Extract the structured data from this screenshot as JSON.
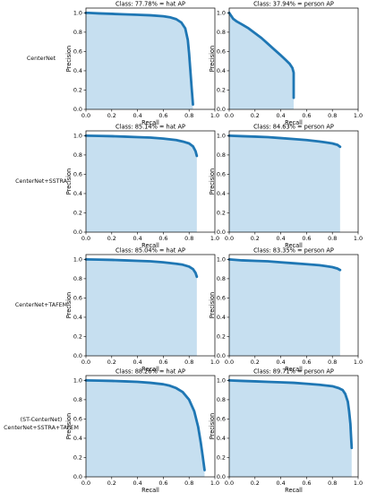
{
  "rows": [
    {
      "label": [
        "CenterNet"
      ]
    },
    {
      "label": [
        "CenterNet+SSTRA"
      ]
    },
    {
      "label": [
        "CenterNet+TAFEM"
      ]
    },
    {
      "label": [
        "(ST-CenterNet)",
        "CenterNet+SSTRA+TAFEM"
      ]
    }
  ],
  "colors": {
    "curve": "#1f77b4",
    "fill": "#c6dff0",
    "axis": "#000000"
  },
  "chart_data": [
    {
      "type": "area",
      "title": "Class: 77.78% = hat AP",
      "xlabel": "Recall",
      "ylabel": "Precision",
      "xlim": [
        0,
        1.0
      ],
      "ylim": [
        0,
        1.05
      ],
      "grid": false,
      "xticks": [
        "0.0",
        "0.2",
        "0.4",
        "0.6",
        "0.8",
        "1.0"
      ],
      "yticks": [
        "0.0",
        "0.2",
        "0.4",
        "0.6",
        "0.8",
        "1.0"
      ],
      "series": [
        {
          "x": [
            0,
            0.02,
            0.1,
            0.2,
            0.3,
            0.4,
            0.5,
            0.6,
            0.65,
            0.7,
            0.74,
            0.77,
            0.79,
            0.8,
            0.81,
            0.82,
            0.83
          ],
          "y": [
            1.0,
            1.0,
            0.995,
            0.99,
            0.985,
            0.98,
            0.975,
            0.965,
            0.955,
            0.935,
            0.9,
            0.84,
            0.72,
            0.58,
            0.4,
            0.22,
            0.05
          ]
        }
      ]
    },
    {
      "type": "area",
      "title": "Class: 37.94% = person AP",
      "xlabel": "Recall",
      "ylabel": "Precision",
      "xlim": [
        0,
        1.0
      ],
      "ylim": [
        0,
        1.05
      ],
      "grid": false,
      "xticks": [
        "0.0",
        "0.2",
        "0.4",
        "0.6",
        "0.8",
        "1.0"
      ],
      "yticks": [
        "0.0",
        "0.2",
        "0.4",
        "0.6",
        "0.8",
        "1.0"
      ],
      "series": [
        {
          "x": [
            0,
            0.01,
            0.03,
            0.06,
            0.1,
            0.15,
            0.2,
            0.25,
            0.3,
            0.35,
            0.4,
            0.44,
            0.47,
            0.49,
            0.5,
            0.5,
            0.5
          ],
          "y": [
            1.0,
            0.98,
            0.94,
            0.91,
            0.88,
            0.84,
            0.79,
            0.74,
            0.68,
            0.62,
            0.56,
            0.51,
            0.47,
            0.43,
            0.38,
            0.25,
            0.12
          ]
        }
      ]
    },
    {
      "type": "area",
      "title": "Class: 85.14% = hat AP",
      "xlabel": "Recall",
      "ylabel": "Precision",
      "xlim": [
        0,
        1.0
      ],
      "ylim": [
        0,
        1.05
      ],
      "grid": false,
      "xticks": [
        "0.0",
        "0.2",
        "0.4",
        "0.6",
        "0.8",
        "1.0"
      ],
      "yticks": [
        "0.0",
        "0.2",
        "0.4",
        "0.6",
        "0.8",
        "1.0"
      ],
      "series": [
        {
          "x": [
            0,
            0.1,
            0.2,
            0.3,
            0.4,
            0.5,
            0.6,
            0.7,
            0.75,
            0.8,
            0.83,
            0.85,
            0.86
          ],
          "y": [
            1.0,
            0.998,
            0.995,
            0.99,
            0.985,
            0.98,
            0.97,
            0.955,
            0.94,
            0.92,
            0.89,
            0.84,
            0.79
          ]
        }
      ]
    },
    {
      "type": "area",
      "title": "Class: 84.63% = person AP",
      "xlabel": "Recall",
      "ylabel": "Precision",
      "xlim": [
        0,
        1.0
      ],
      "ylim": [
        0,
        1.05
      ],
      "grid": false,
      "xticks": [
        "0.0",
        "0.2",
        "0.4",
        "0.6",
        "0.8",
        "1.0"
      ],
      "yticks": [
        "0.0",
        "0.2",
        "0.4",
        "0.6",
        "0.8",
        "1.0"
      ],
      "series": [
        {
          "x": [
            0,
            0.1,
            0.2,
            0.3,
            0.4,
            0.5,
            0.6,
            0.7,
            0.75,
            0.8,
            0.84,
            0.86
          ],
          "y": [
            1.0,
            0.995,
            0.99,
            0.985,
            0.975,
            0.965,
            0.955,
            0.94,
            0.93,
            0.92,
            0.905,
            0.885
          ]
        }
      ]
    },
    {
      "type": "area",
      "title": "Class: 85.04% = hat AP",
      "xlabel": "Recall",
      "ylabel": "Precision",
      "xlim": [
        0,
        1.0
      ],
      "ylim": [
        0,
        1.05
      ],
      "grid": false,
      "xticks": [
        "0.0",
        "0.2",
        "0.4",
        "0.6",
        "0.8",
        "1.0"
      ],
      "yticks": [
        "0.0",
        "0.2",
        "0.4",
        "0.6",
        "0.8",
        "1.0"
      ],
      "series": [
        {
          "x": [
            0,
            0.1,
            0.2,
            0.3,
            0.4,
            0.5,
            0.6,
            0.7,
            0.75,
            0.8,
            0.83,
            0.85,
            0.86
          ],
          "y": [
            1.0,
            0.998,
            0.995,
            0.99,
            0.985,
            0.98,
            0.97,
            0.955,
            0.945,
            0.925,
            0.9,
            0.86,
            0.82
          ]
        }
      ]
    },
    {
      "type": "area",
      "title": "Class: 83.35% = person AP",
      "xlabel": "Recall",
      "ylabel": "Precision",
      "xlim": [
        0,
        1.0
      ],
      "ylim": [
        0,
        1.05
      ],
      "grid": false,
      "xticks": [
        "0.0",
        "0.2",
        "0.4",
        "0.6",
        "0.8",
        "1.0"
      ],
      "yticks": [
        "0.0",
        "0.2",
        "0.4",
        "0.6",
        "0.8",
        "1.0"
      ],
      "series": [
        {
          "x": [
            0,
            0.1,
            0.2,
            0.3,
            0.4,
            0.5,
            0.6,
            0.7,
            0.75,
            0.8,
            0.84,
            0.86
          ],
          "y": [
            1.0,
            0.99,
            0.985,
            0.98,
            0.97,
            0.96,
            0.95,
            0.94,
            0.93,
            0.92,
            0.905,
            0.89
          ]
        }
      ]
    },
    {
      "type": "area",
      "title": "Class: 88.26% = hat AP",
      "xlabel": "Recall",
      "ylabel": "Precision",
      "xlim": [
        0,
        1.0
      ],
      "ylim": [
        0,
        1.05
      ],
      "grid": false,
      "xticks": [
        "0.0",
        "0.2",
        "0.4",
        "0.6",
        "0.8",
        "1.0"
      ],
      "yticks": [
        "0.0",
        "0.2",
        "0.4",
        "0.6",
        "0.8",
        "1.0"
      ],
      "series": [
        {
          "x": [
            0,
            0.1,
            0.2,
            0.3,
            0.4,
            0.5,
            0.6,
            0.65,
            0.7,
            0.75,
            0.8,
            0.84,
            0.87,
            0.89,
            0.905,
            0.915,
            0.92
          ],
          "y": [
            1.0,
            0.998,
            0.995,
            0.99,
            0.985,
            0.975,
            0.96,
            0.945,
            0.92,
            0.88,
            0.8,
            0.68,
            0.52,
            0.36,
            0.22,
            0.12,
            0.07
          ]
        }
      ]
    },
    {
      "type": "area",
      "title": "Class: 89.71% = person AP",
      "xlabel": "Recall",
      "ylabel": "Precision",
      "xlim": [
        0,
        1.0
      ],
      "ylim": [
        0,
        1.05
      ],
      "grid": false,
      "xticks": [
        "0.0",
        "0.2",
        "0.4",
        "0.6",
        "0.8",
        "1.0"
      ],
      "yticks": [
        "0.0",
        "0.2",
        "0.4",
        "0.6",
        "0.8",
        "1.0"
      ],
      "series": [
        {
          "x": [
            0,
            0.1,
            0.2,
            0.3,
            0.4,
            0.5,
            0.6,
            0.7,
            0.8,
            0.85,
            0.88,
            0.9,
            0.92,
            0.93,
            0.94,
            0.945,
            0.95
          ],
          "y": [
            1.0,
            0.995,
            0.99,
            0.985,
            0.98,
            0.975,
            0.965,
            0.955,
            0.94,
            0.92,
            0.9,
            0.86,
            0.78,
            0.68,
            0.55,
            0.42,
            0.3
          ]
        }
      ]
    }
  ]
}
